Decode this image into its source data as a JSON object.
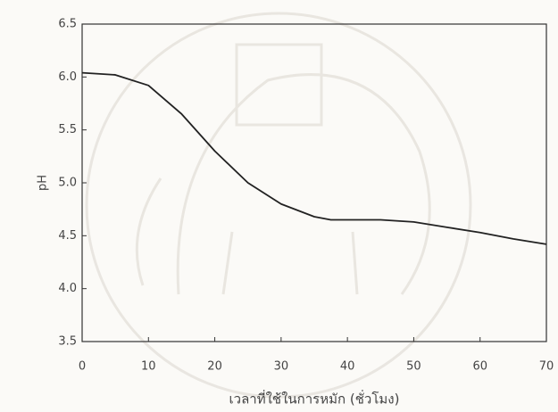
{
  "chart_data": {
    "type": "line",
    "xlabel": "เวลาที่ใช้ในการหมัก (ชั่วโมง)",
    "ylabel": "pH",
    "x": [
      0,
      5,
      10,
      15,
      20,
      25,
      30,
      35,
      37.5,
      40,
      45,
      50,
      55,
      60,
      65,
      70
    ],
    "series": [
      {
        "name": "pH",
        "color": "#222222",
        "values": [
          6.04,
          6.02,
          5.92,
          5.65,
          5.3,
          5.0,
          4.8,
          4.68,
          4.65,
          4.65,
          4.65,
          4.63,
          4.58,
          4.53,
          4.47,
          4.42
        ]
      }
    ],
    "xlim": [
      0,
      70
    ],
    "xticks": [
      0,
      10,
      20,
      30,
      40,
      50,
      60,
      70
    ],
    "ylim": [
      3.5,
      6.5
    ],
    "yticks": [
      3.5,
      {
        "value": 4,
        "label": "4.0"
      },
      4.5,
      {
        "value": 5,
        "label": "5.0"
      },
      5.5,
      {
        "value": 6,
        "label": "6.0"
      },
      6.5
    ],
    "grid": false
  }
}
